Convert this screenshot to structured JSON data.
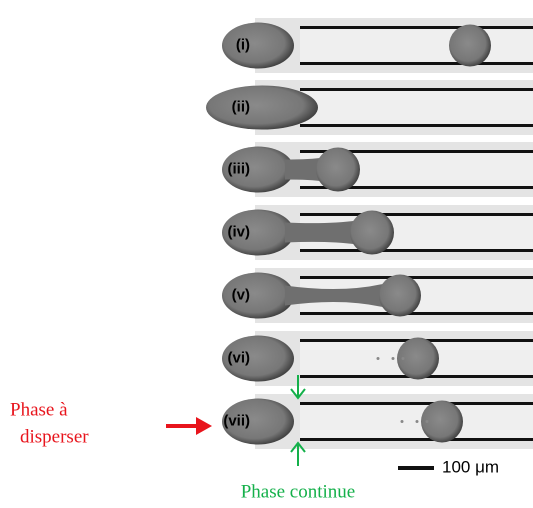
{
  "figure": {
    "panels": [
      {
        "label": "(i)"
      },
      {
        "label": "(ii)"
      },
      {
        "label": "(iii)"
      },
      {
        "label": "(iv)"
      },
      {
        "label": "(v)"
      },
      {
        "label": "(vi)"
      },
      {
        "label": "(vii)"
      }
    ],
    "scale_bar": {
      "label": "100 μm"
    }
  },
  "annotations": {
    "dispersed_phase": [
      "Phase  à",
      "disperser"
    ],
    "continuous_phase": "Phase continue"
  }
}
